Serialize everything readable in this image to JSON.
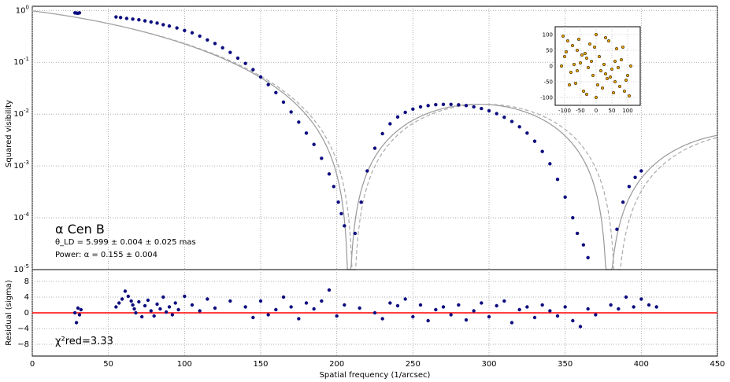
{
  "chart_data": [
    {
      "type": "scatter",
      "panel": "top",
      "ylabel": "Squared visibility",
      "y_scale": "log",
      "xlim": [
        0,
        450
      ],
      "ylim": [
        1e-05,
        1.2
      ],
      "grid": true,
      "y_ticks": [
        "10^-5",
        "10^-4",
        "10^-3",
        "10^-2",
        "10^-1",
        "10^0"
      ],
      "annotation": {
        "star": "α Cen B",
        "theta": "θ_LD = 5.999 ± 0.004  ± 0.025 mas",
        "power": "Power: α = 0.155 ± 0.004"
      },
      "model": {
        "zeros": [
          208,
          378
        ],
        "power_law_alpha": 0.155,
        "solid_color": "#999999",
        "dashed_color": "#aaaaaa"
      },
      "series": [
        {
          "color": "#0d0d80",
          "x": [
            28,
            29,
            30,
            31,
            55,
            58,
            62,
            66,
            70,
            74,
            78,
            82,
            86,
            90,
            95,
            100,
            105,
            110,
            115,
            120,
            125,
            130,
            135,
            140,
            145,
            150,
            155,
            160,
            165,
            170,
            175,
            180,
            185,
            190,
            195,
            198,
            201,
            203,
            205,
            212,
            216,
            220,
            225,
            230,
            235,
            240,
            245,
            250,
            255,
            260,
            265,
            270,
            275,
            280,
            285,
            290,
            295,
            300,
            305,
            310,
            315,
            320,
            325,
            330,
            335,
            340,
            345,
            350,
            355,
            358,
            362,
            365,
            384,
            388,
            392,
            396,
            400
          ],
          "y": [
            0.9,
            0.89,
            0.88,
            0.9,
            0.75,
            0.73,
            0.7,
            0.68,
            0.66,
            0.63,
            0.6,
            0.57,
            0.53,
            0.5,
            0.46,
            0.41,
            0.37,
            0.32,
            0.27,
            0.23,
            0.19,
            0.155,
            0.12,
            0.095,
            0.072,
            0.052,
            0.037,
            0.026,
            0.017,
            0.011,
            0.007,
            0.0043,
            0.0026,
            0.0014,
            0.0007,
            0.0004,
            0.0002,
            0.00012,
            7e-05,
            5e-05,
            0.0002,
            0.0008,
            0.0022,
            0.0042,
            0.0065,
            0.0088,
            0.0108,
            0.0125,
            0.0138,
            0.0146,
            0.0152,
            0.0154,
            0.0154,
            0.0151,
            0.0146,
            0.0138,
            0.0128,
            0.0116,
            0.0102,
            0.0087,
            0.0072,
            0.0057,
            0.0043,
            0.003,
            0.0019,
            0.0011,
            0.00055,
            0.00025,
            0.0001,
            5e-05,
            3e-05,
            1.7e-05,
            6e-05,
            0.0002,
            0.0004,
            0.0006,
            0.0008
          ]
        }
      ],
      "inset": {
        "type": "scatter",
        "xlim": [
          -130,
          140
        ],
        "ylim": [
          -125,
          125
        ],
        "x_ticks": [
          "-100",
          "-50",
          "0",
          "50",
          "100"
        ],
        "y_ticks": [
          "-100",
          "-50",
          "0",
          "50",
          "100"
        ],
        "marker_color": "#e8a200",
        "x": [
          -15,
          15,
          -30,
          30,
          -45,
          45,
          -60,
          60,
          -75,
          75,
          -90,
          90,
          -105,
          105,
          0,
          0,
          -10,
          10,
          -25,
          25,
          -35,
          35,
          -50,
          50,
          -65,
          65,
          -80,
          80,
          -95,
          95,
          -110,
          110,
          -20,
          20,
          -40,
          40,
          -55,
          55,
          -70,
          70,
          -85,
          85,
          -100,
          100,
          -5,
          5,
          -60,
          60,
          -30,
          30
        ],
        "y": [
          15,
          -15,
          25,
          -25,
          35,
          -35,
          50,
          -50,
          65,
          -65,
          80,
          -80,
          95,
          -95,
          100,
          -100,
          -30,
          30,
          -5,
          5,
          40,
          -40,
          10,
          -10,
          -55,
          55,
          -20,
          20,
          45,
          -45,
          0,
          0,
          70,
          -70,
          -80,
          80,
          85,
          -85,
          5,
          -5,
          -60,
          60,
          30,
          -30,
          60,
          -60,
          -15,
          15,
          -90,
          90
        ]
      }
    },
    {
      "type": "scatter",
      "panel": "bottom",
      "xlabel": "Spatial frequency (1/arcsec)",
      "ylabel": "Residual (sigma)",
      "xlim": [
        0,
        450
      ],
      "ylim": [
        -11,
        11
      ],
      "grid": true,
      "x_ticks": [
        "0",
        "50",
        "100",
        "150",
        "200",
        "250",
        "300",
        "350",
        "400",
        "450"
      ],
      "y_ticks": [
        "−8",
        "−4",
        "0",
        "4",
        "8"
      ],
      "reference_line": {
        "y": 0,
        "color": "#ff0000"
      },
      "chi2_label": "χ²red=3.33",
      "series": [
        {
          "color": "#0d0d80",
          "x": [
            28,
            29,
            30,
            31,
            32,
            55,
            57,
            59,
            61,
            63,
            65,
            66,
            67,
            68,
            70,
            72,
            74,
            76,
            78,
            80,
            82,
            84,
            86,
            88,
            90,
            92,
            94,
            96,
            100,
            105,
            110,
            115,
            120,
            130,
            140,
            145,
            150,
            155,
            160,
            165,
            170,
            175,
            180,
            185,
            190,
            195,
            200,
            205,
            215,
            225,
            230,
            235,
            240,
            245,
            250,
            255,
            260,
            265,
            270,
            275,
            280,
            285,
            290,
            295,
            300,
            305,
            310,
            315,
            320,
            325,
            330,
            335,
            340,
            345,
            350,
            355,
            360,
            365,
            370,
            380,
            385,
            390,
            395,
            400,
            405,
            410
          ],
          "y": [
            0,
            -2.5,
            1.2,
            -0.5,
            0.8,
            1.5,
            2.5,
            3.5,
            5.5,
            4.2,
            3.0,
            2.0,
            1.0,
            0.0,
            2.8,
            -1.0,
            1.8,
            3.2,
            0.5,
            -0.8,
            2.2,
            1.0,
            4.0,
            0.2,
            1.5,
            -0.5,
            2.5,
            0.8,
            4.2,
            2.0,
            0.5,
            3.5,
            1.2,
            3.0,
            1.5,
            -1.2,
            3.0,
            -0.5,
            0.8,
            4.0,
            1.5,
            -1.5,
            2.5,
            1.0,
            3.0,
            5.8,
            -0.8,
            2.0,
            1.2,
            0.0,
            -1.5,
            2.5,
            1.8,
            3.5,
            -1.0,
            2.0,
            -2.0,
            0.8,
            1.5,
            -0.5,
            2.0,
            -1.8,
            0.5,
            2.5,
            -1.0,
            1.8,
            3.0,
            -2.5,
            0.8,
            1.5,
            -1.2,
            2.0,
            0.5,
            -0.8,
            1.5,
            -2.0,
            -3.5,
            1.0,
            -0.5,
            2.0,
            1.0,
            4.0,
            1.5,
            3.5,
            2.0,
            1.5
          ]
        }
      ]
    }
  ]
}
